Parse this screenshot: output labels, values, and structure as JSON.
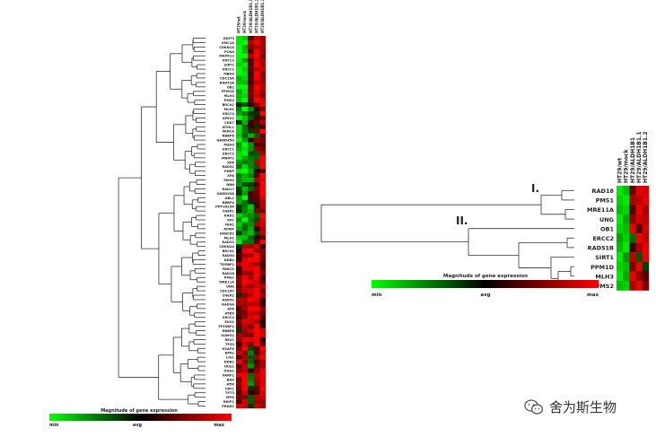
{
  "left_panel": {
    "columns": [
      "HT29/wt",
      "HT29/mock",
      "HT29/ALDH1B1.1",
      "HT29/ALDH1B1.2",
      "HT29/ALDH1B1.3"
    ],
    "genes": [
      "DDIT3",
      "SMC1A",
      "CDKN1A",
      "PCNA",
      "MAPK12",
      "XRCC3",
      "SIRT1",
      "XRCC1",
      "MBD4",
      "CDC25A",
      "RAD51B",
      "OB1",
      "PPM1D",
      "MLH3",
      "PMS2",
      "BRCA2",
      "MLH1",
      "XRCC4",
      "APEX1",
      "CDK7",
      "NTHL1",
      "FANCA",
      "RBBP8",
      "GADD45G",
      "MSH3",
      "ERCC1",
      "ERCC2",
      "MNAT1",
      "XPA",
      "RAD51",
      "PNKP",
      "XPA",
      "MSH2",
      "NBN",
      "RAD17",
      "GADD45A",
      "ABL1",
      "RBBP4",
      "PPP1R15A",
      "CHEK1",
      "RAD1",
      "XPC",
      "FEN1",
      "ATRIP",
      "FANCD2",
      "MLH1",
      "RAD21",
      "CDKN2A",
      "BRCA1",
      "RAD50",
      "DDB2",
      "TOPBP1",
      "FANCG",
      "RAD18",
      "PMS1",
      "MRE11A",
      "UNG",
      "CDC25C",
      "CHEK2",
      "RAD51",
      "RAD9A",
      "ATR",
      "ATRX",
      "XRCC2",
      "EXO1",
      "TP53BP1",
      "RBBP8",
      "SUMO1",
      "REV1",
      "TP53",
      "H2AFX",
      "RPA1",
      "LIG1",
      "DDB1",
      "HUS1",
      "OGG1",
      "PARP1",
      "BAX",
      "ATM",
      "CRY1",
      "TP73",
      "MPG",
      "BRIP1",
      "PRKDC"
    ],
    "legend": {
      "title": "Magnitude of gene expression",
      "min": "min",
      "avg": "avg",
      "max": "max"
    }
  },
  "right_panel": {
    "columns": [
      "HT29/wt",
      "HT29/mock",
      "HT29/ALDH1B1",
      "HT29/ALDH1B1.1",
      "HT29/ALDH1B1.2"
    ],
    "genes": [
      "RAD18",
      "PMS1",
      "MRE11A",
      "UNG",
      "OB1",
      "ERCC2",
      "RAD51B",
      "SIRT1",
      "PPM1D",
      "MLH3",
      "PMS2"
    ],
    "cluster_labels": [
      "I.",
      "II."
    ],
    "legend": {
      "title": "Magnitude of gene expression",
      "min": "min",
      "avg": "avg",
      "max": "max"
    }
  },
  "watermark": {
    "text": "舍为斯生物",
    "icon": "wechat-icon"
  },
  "colors": {
    "low": "#00e000",
    "mid": "#000000",
    "high": "#e00000"
  }
}
